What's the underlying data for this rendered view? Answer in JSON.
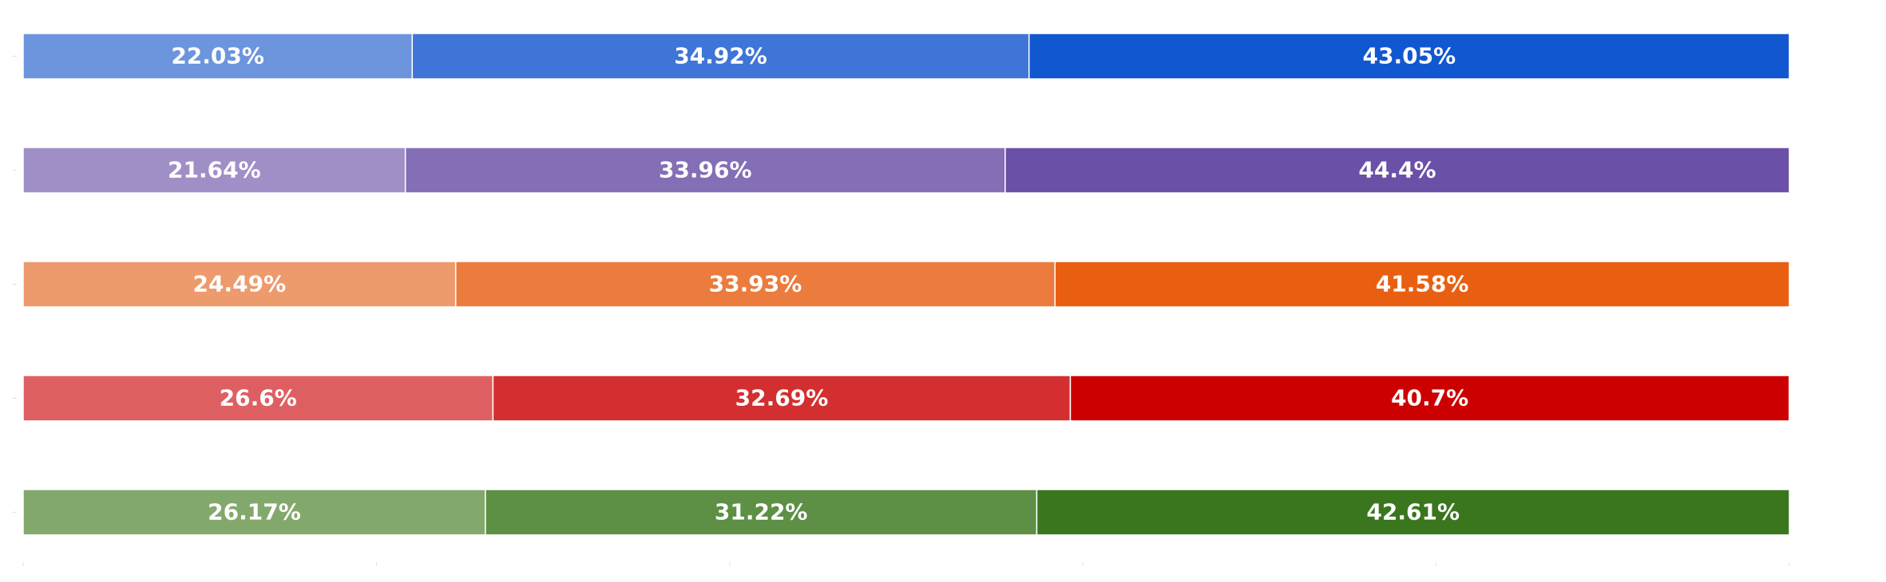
{
  "chart_data": {
    "type": "bar",
    "orientation": "horizontal",
    "stacked": true,
    "title": "",
    "xlabel": "",
    "ylabel": "",
    "xlim": [
      0,
      100
    ],
    "grid": false,
    "legend": "none",
    "label_color": "#ffffff",
    "rows": [
      {
        "values": [
          22.03,
          34.92,
          43.05
        ],
        "labels": [
          "22.03%",
          "34.92%",
          "43.05%"
        ],
        "colors": [
          "#6d95dd",
          "#3f75d6",
          "#1157cf"
        ]
      },
      {
        "values": [
          21.64,
          33.96,
          44.4
        ],
        "labels": [
          "21.64%",
          "33.96%",
          "44.4%"
        ],
        "colors": [
          "#a08fc6",
          "#846eb5",
          "#6a50a7"
        ]
      },
      {
        "values": [
          24.49,
          33.93,
          41.58
        ],
        "labels": [
          "24.49%",
          "33.93%",
          "41.58%"
        ],
        "colors": [
          "#ed9a6c",
          "#eb7c3d",
          "#e95f11"
        ]
      },
      {
        "values": [
          26.6,
          32.69,
          40.7
        ],
        "labels": [
          "26.6%",
          "32.69%",
          "40.7%"
        ],
        "colors": [
          "#de5f62",
          "#d32f30",
          "#cc0000"
        ]
      },
      {
        "values": [
          26.17,
          31.22,
          42.61
        ],
        "labels": [
          "26.17%",
          "31.22%",
          "42.61%"
        ],
        "colors": [
          "#83a86c",
          "#5d8f45",
          "#3a761e"
        ]
      }
    ]
  }
}
